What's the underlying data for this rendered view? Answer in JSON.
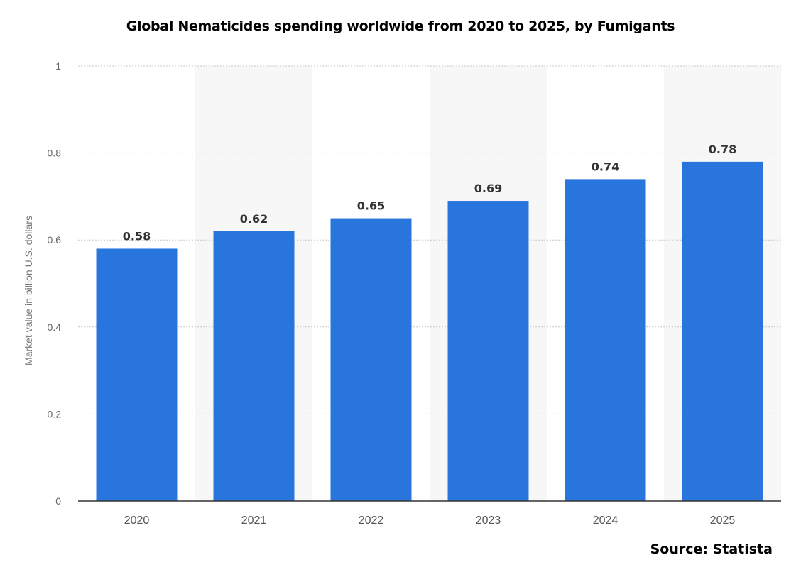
{
  "title": "Global Nematicides spending worldwide from 2020 to 2025, by Fumigants",
  "source": "Source: Statista",
  "chart_data": {
    "type": "bar",
    "title": "Global Nematicides spending worldwide from 2020 to 2025, by Fumigants",
    "categories": [
      "2020",
      "2021",
      "2022",
      "2023",
      "2024",
      "2025"
    ],
    "values": [
      0.58,
      0.62,
      0.65,
      0.69,
      0.74,
      0.78
    ],
    "value_labels": [
      "0.58",
      "0.62",
      "0.65",
      "0.69",
      "0.74",
      "0.78"
    ],
    "xlabel": "",
    "ylabel": "Market value in billion U.S. dollars",
    "ylim": [
      0,
      1
    ],
    "yticks": [
      "0",
      "0.2",
      "0.4",
      "0.6",
      "0.8",
      "1"
    ],
    "grid": true,
    "bar_color": "#2876dd",
    "band_color": "#f7f7f7"
  }
}
